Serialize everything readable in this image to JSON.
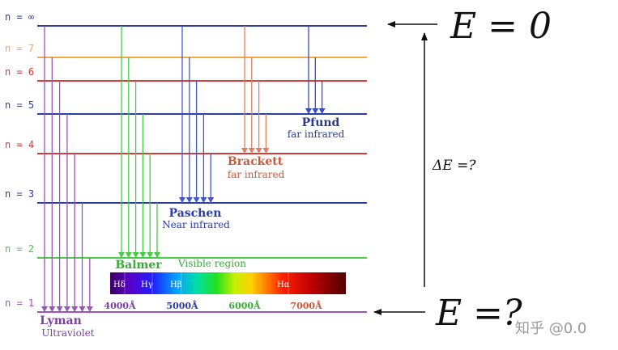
{
  "energy_levels": [
    {
      "label": "n = ∞",
      "color": "#2c3e9e"
    },
    {
      "label": "n = 7",
      "color": "#f0a848"
    },
    {
      "label": "n = 6",
      "color": "#d63a3a"
    },
    {
      "label": "n = 5",
      "color": "#2c3e9e"
    },
    {
      "label": "n = 4",
      "color": "#d63a3a"
    },
    {
      "label": "n = 3",
      "color": "#2c3e9e"
    },
    {
      "label": "n = 2",
      "color": "#44cc44"
    },
    {
      "label": "n = 1",
      "color": "#9a55b8"
    }
  ],
  "series": [
    {
      "name": "Lyman",
      "subtitle": "Ultraviolet",
      "color": "#9a55b8",
      "name_color": "#7b3fa0",
      "lower_level": 1,
      "upper_levels": [
        8,
        7,
        6,
        5,
        4,
        3,
        2
      ]
    },
    {
      "name": "Balmer",
      "subtitle": "Visible region",
      "color": "#44cc44",
      "name_color": "#3aaa3a",
      "lower_level": 2,
      "upper_levels": [
        8,
        7,
        6,
        5,
        4,
        3
      ]
    },
    {
      "name": "Paschen",
      "subtitle": "Near infrared",
      "color": "#4455cc",
      "name_color": "#2a3cb0",
      "lower_level": 3,
      "upper_levels": [
        8,
        7,
        6,
        5,
        4
      ]
    },
    {
      "name": "Brackett",
      "subtitle": "far infrared",
      "color": "#e08060",
      "name_color": "#c65a3a",
      "lower_level": 4,
      "upper_levels": [
        8,
        7,
        6,
        5
      ]
    },
    {
      "name": "Pfund",
      "subtitle": "far infrared",
      "color": "#3a4cbb",
      "name_color": "#2a3a8a",
      "lower_level": 5,
      "upper_levels": [
        8,
        7,
        6
      ]
    }
  ],
  "spectrum": {
    "line_labels": [
      "Hδ",
      "Hγ",
      "Hβ",
      "Hα"
    ],
    "wavelength_ticks": [
      "4000Å",
      "5000Å",
      "6000Å",
      "7000Å"
    ],
    "tick_colors": [
      "#7b3fa0",
      "#2a3cb0",
      "#3aaa3a",
      "#c65a3a"
    ]
  },
  "annotations": {
    "top_energy": "E = 0",
    "bottom_energy": "E =?",
    "delta_energy": "ΔE =?"
  },
  "watermark": "知乎 @0.0"
}
